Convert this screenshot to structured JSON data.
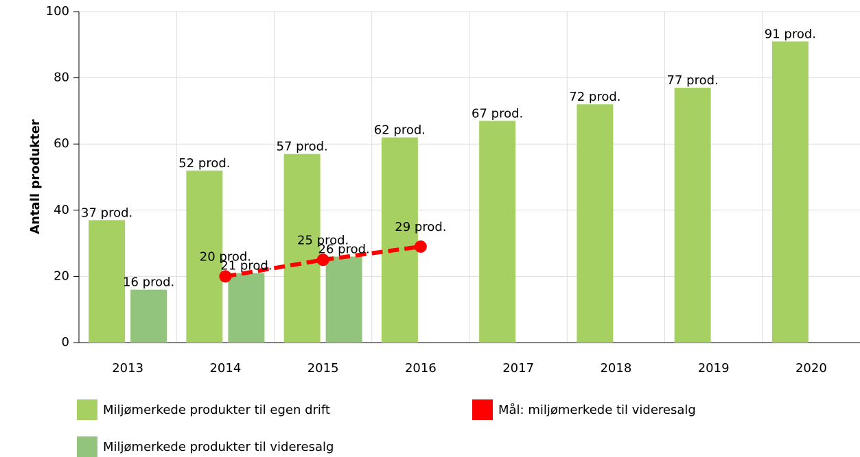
{
  "chart_data": {
    "type": "bar",
    "y_label": "Antall produkter",
    "categories": [
      "2013",
      "2014",
      "2015",
      "2016",
      "2017",
      "2018",
      "2019",
      "2020"
    ],
    "series": [
      {
        "name": "Miljømerkede produkter til egen drift",
        "type": "bar",
        "color": "#a6d162",
        "values": [
          37,
          52,
          57,
          62,
          67,
          72,
          77,
          91
        ],
        "value_labels": [
          "37 prod.",
          "52 prod.",
          "57 prod.",
          "62 prod.",
          "67 prod.",
          "72 prod.",
          "77 prod.",
          "91 prod."
        ]
      },
      {
        "name": "Miljømerkede produkter til videresalg",
        "type": "bar",
        "color": "#93c47d",
        "values": [
          16,
          21,
          26,
          null,
          null,
          null,
          null,
          null
        ],
        "value_labels": [
          "16 prod.",
          "21 prod.",
          "26 prod.",
          null,
          null,
          null,
          null,
          null
        ]
      },
      {
        "name": "Mål: miljømerkede til videresalg",
        "type": "line",
        "color": "#ff0000",
        "values": [
          null,
          20,
          25,
          29,
          null,
          null,
          null,
          null
        ],
        "value_labels": [
          null,
          "20 prod.",
          "25 prod.",
          "29 prod.",
          null,
          null,
          null,
          null
        ]
      }
    ],
    "ylim": [
      0,
      100
    ],
    "yticks": [
      0,
      20,
      40,
      60,
      80,
      100
    ],
    "grid": true
  }
}
